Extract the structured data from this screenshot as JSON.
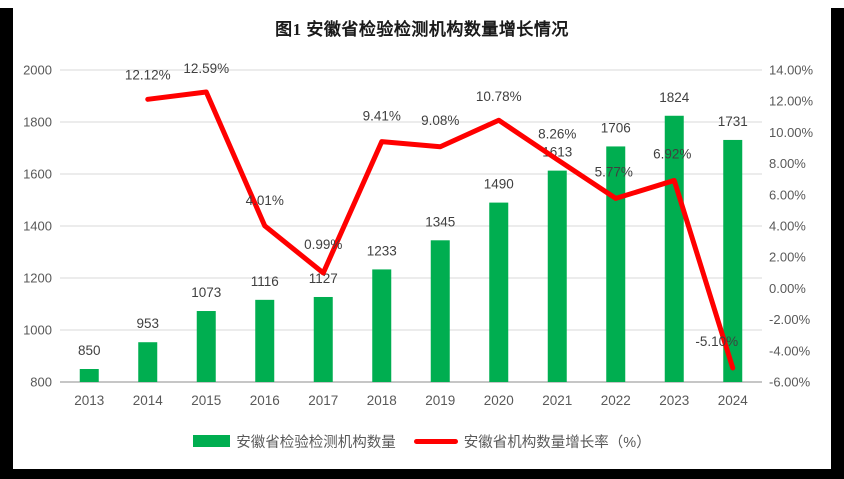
{
  "title": "图1 安徽省检验检测机构数量增长情况",
  "colors": {
    "bar": "#00AE50",
    "line": "#FF0000",
    "grid": "#D9D9D9",
    "axis_line": "#C6C6C6",
    "axis_text": "#595959",
    "label_text": "#404040",
    "title_text": "#1A1A1A",
    "frame": "#000000"
  },
  "chart_data": {
    "type": "combo-bar-line",
    "title": "图1 安徽省检验检测机构数量增长情况",
    "categories": [
      "2013",
      "2014",
      "2015",
      "2016",
      "2017",
      "2018",
      "2019",
      "2020",
      "2021",
      "2022",
      "2023",
      "2024"
    ],
    "series": [
      {
        "name": "安徽省检验检测机构数量",
        "type": "bar",
        "axis": "left",
        "values": [
          850,
          953,
          1073,
          1116,
          1127,
          1233,
          1345,
          1490,
          1613,
          1706,
          1824,
          1731
        ],
        "labels": [
          "850",
          "953",
          "1073",
          "1116",
          "1127",
          "1233",
          "1345",
          "1490",
          "1613",
          "1706",
          "1824",
          "1731"
        ]
      },
      {
        "name": "安徽省机构数量增长率（%）",
        "type": "line",
        "axis": "right",
        "values": [
          null,
          12.12,
          12.59,
          4.01,
          0.99,
          9.41,
          9.08,
          10.78,
          8.26,
          5.77,
          6.92,
          -5.1
        ],
        "labels": [
          null,
          "12.12%",
          "12.59%",
          "4.01%",
          "0.99%",
          "9.41%",
          "9.08%",
          "10.78%",
          "8.26%",
          "5.77%",
          "6.92%",
          "-5.10%"
        ]
      }
    ],
    "left_axis": {
      "min": 800,
      "max": 2000,
      "step": 200,
      "ticks": [
        "2000",
        "1800",
        "1600",
        "1400",
        "1200",
        "1000",
        "800"
      ]
    },
    "right_axis": {
      "min": -6,
      "max": 14,
      "step": 2,
      "ticks": [
        "14.00%",
        "12.00%",
        "10.00%",
        "8.00%",
        "6.00%",
        "4.00%",
        "2.00%",
        "0.00%",
        "-2.00%",
        "-4.00%",
        "-6.00%"
      ]
    },
    "grid": true,
    "legend_position": "bottom"
  },
  "legend": {
    "items": [
      {
        "label": "安徽省检验检测机构数量",
        "type": "bar"
      },
      {
        "label": "安徽省机构数量增长率（%）",
        "type": "line"
      }
    ]
  }
}
